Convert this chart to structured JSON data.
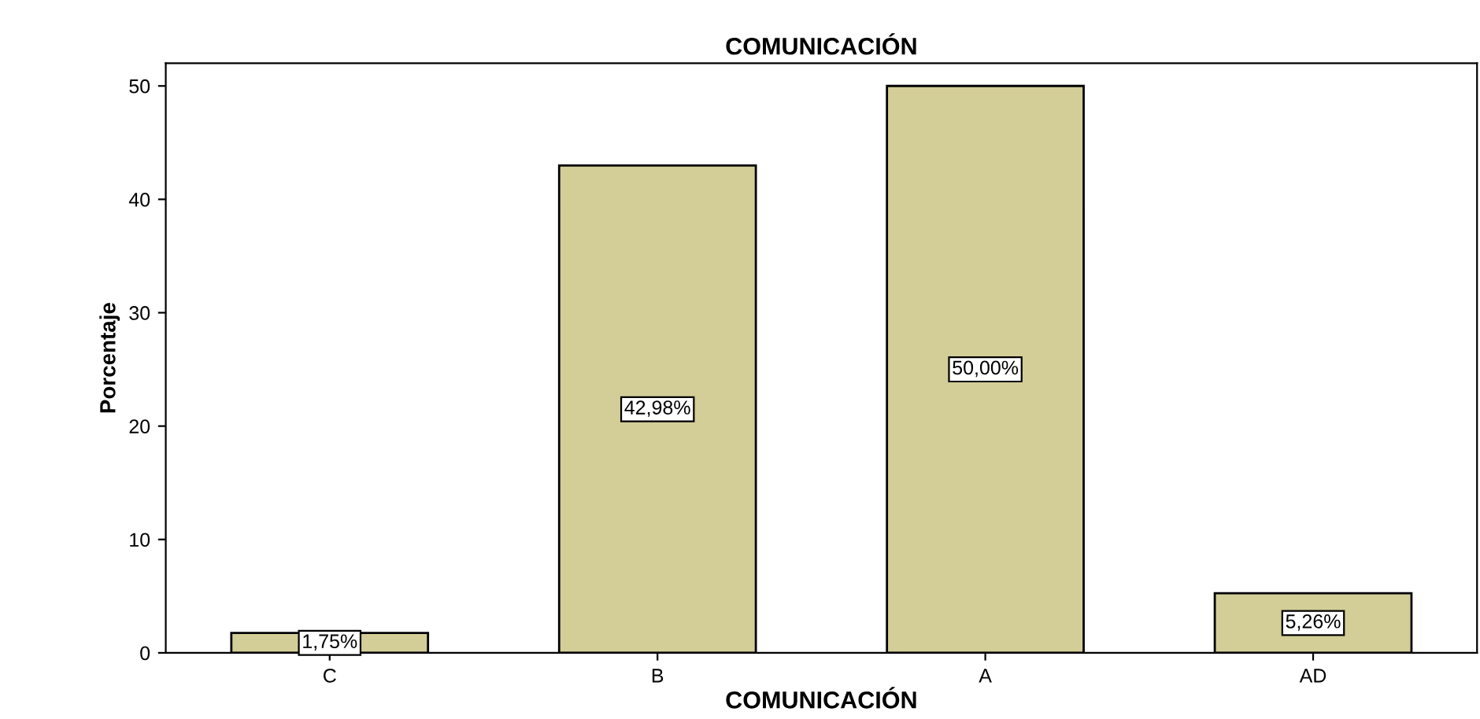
{
  "chart_data": {
    "type": "bar",
    "title": "COMUNICACIÓN",
    "xlabel": "COMUNICACIÓN",
    "ylabel": "Porcentaje",
    "categories": [
      "C",
      "B",
      "A",
      "AD"
    ],
    "values": [
      1.75,
      42.98,
      50.0,
      5.26
    ],
    "value_labels": [
      "1,75%",
      "42,98%",
      "50,00%",
      "5,26%"
    ],
    "color": "#d3ce97",
    "ylim": [
      0,
      52
    ],
    "yticks": [
      0,
      10,
      20,
      30,
      40,
      50
    ],
    "grid": false
  }
}
